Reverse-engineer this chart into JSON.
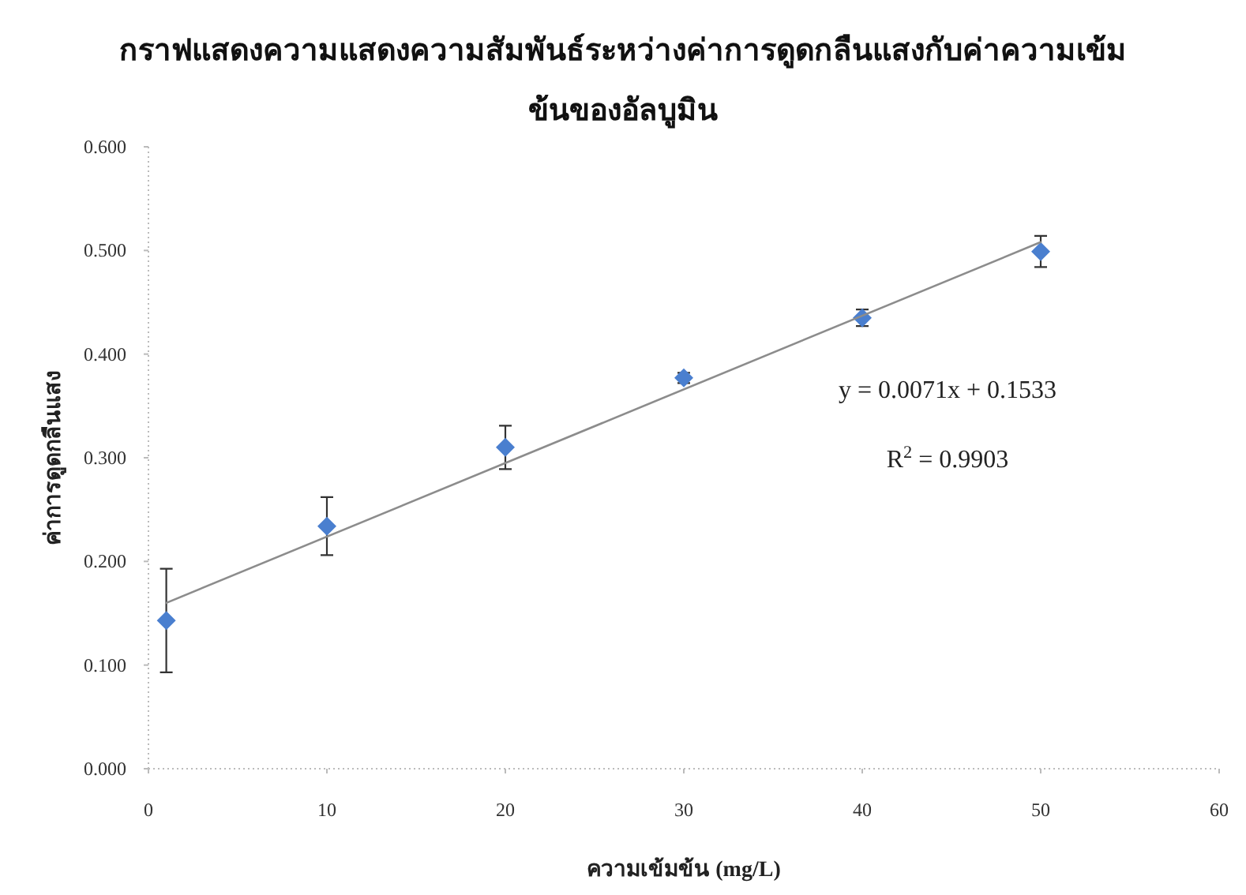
{
  "chart_data": {
    "type": "scatter",
    "title": "กราฟแสดงความแสดงความสัมพันธ์ระหว่างค่าการดูดกลืนแสงกับค่าความเข้มข้นของอัลบูมิน",
    "xlabel": "ความเข้มข้น (mg/L)",
    "ylabel": "ค่าการดูดกลืนแสง",
    "annotations": [
      "y = 0.0071x + 0.1533",
      "R$^{2}$ = 0.9903"
    ],
    "x": [
      1,
      10,
      20,
      30,
      40,
      50
    ],
    "marker": "diamond",
    "series": [
      {
        "type": "scatter",
        "color": "#4a7fcf",
        "values": [
          0.143,
          0.234,
          0.31,
          0.377,
          0.435,
          0.499
        ],
        "errors": [
          0.05,
          0.028,
          0.021,
          0.005,
          0.008,
          0.015
        ]
      },
      {
        "type": "line",
        "x": [
          1,
          50
        ],
        "values": [
          0.16,
          0.508
        ],
        "color": "#8c8c8c",
        "line_style": "solid",
        "marker": "none"
      }
    ],
    "xlim": [
      0,
      60
    ],
    "xticks": [
      0,
      10,
      20,
      30,
      40,
      50,
      60
    ],
    "ylim": [
      0,
      0.6
    ],
    "yticks": [
      {
        "value": 0,
        "label": "0.000"
      },
      {
        "value": 0.1,
        "label": "0.100"
      },
      {
        "value": 0.2,
        "label": "0.200"
      },
      {
        "value": 0.3,
        "label": "0.300"
      },
      {
        "value": 0.4,
        "label": "0.400"
      },
      {
        "value": 0.5,
        "label": "0.500"
      },
      {
        "value": 0.6,
        "label": "0.600"
      }
    ]
  }
}
